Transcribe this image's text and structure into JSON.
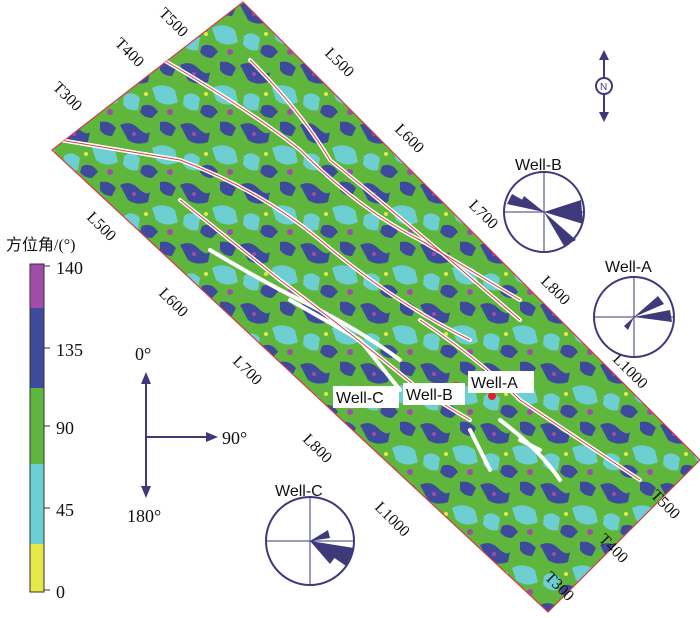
{
  "legend": {
    "title": "方位角/(°)",
    "ticks": [
      "140",
      "135",
      "90",
      "45",
      "0"
    ],
    "colors": {
      "c0_45": "#e6e84a",
      "c45_90": "#6ecfd2",
      "c90_135": "#5fb63c",
      "c135_140": "#3e4a9c",
      "c140": "#a14ca8"
    }
  },
  "compass": {
    "north": "0°",
    "east": "90°",
    "south": "180°"
  },
  "survey_lines": {
    "top_left": [
      "T500",
      "T400",
      "T300"
    ],
    "left": [
      "L500",
      "L600",
      "L700",
      "L800",
      "L1000"
    ],
    "top_right": [
      "L500",
      "L600",
      "L700",
      "L800",
      "L1000"
    ],
    "bottom_right": [
      "T500",
      "T400",
      "T300"
    ]
  },
  "wells": {
    "well_a": "Well-A",
    "well_b": "Well-B",
    "well_c": "Well-C"
  },
  "rose_diagrams": {
    "well_b": "Well-B",
    "well_a": "Well-A",
    "well_c": "Well-C"
  },
  "north_arrow_icon": "north-arrow-icon"
}
